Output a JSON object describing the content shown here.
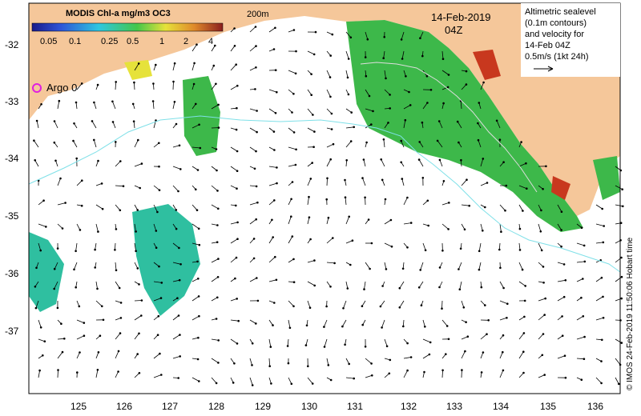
{
  "colorbar": {
    "title": "MODIS Chl-a mg/m3 OC3",
    "ticks": [
      "0.05",
      "0.1",
      "0.25",
      "0.5",
      "1",
      "2",
      "4"
    ]
  },
  "contour_label": "200m",
  "date": "14-Feb-2019",
  "time": "04Z",
  "legend": {
    "line1": "Altimetric sealevel",
    "line2": "(0.1m contours)",
    "line3": "and velocity for",
    "line4": "14-Feb 04Z",
    "line5": "0.5m/s (1kt 24h)"
  },
  "argo_label": "Argo 0",
  "credit": "© IMOS 24-Feb-2019 11:50:06 Hobart time",
  "lat_ticks": [
    "-32",
    "-33",
    "-34",
    "-35",
    "-36",
    "-37"
  ],
  "lon_ticks": [
    "125",
    "126",
    "127",
    "128",
    "129",
    "130",
    "131",
    "132",
    "133",
    "134",
    "135",
    "136"
  ],
  "colors": {
    "land": "#f5c79a",
    "chl_green": "#3db84a",
    "chl_teal": "#2fbfa0",
    "chl_yellow": "#e6e23a",
    "chl_red": "#c8381e",
    "contour": "#7fe0e8",
    "argo": "#e020e0"
  }
}
